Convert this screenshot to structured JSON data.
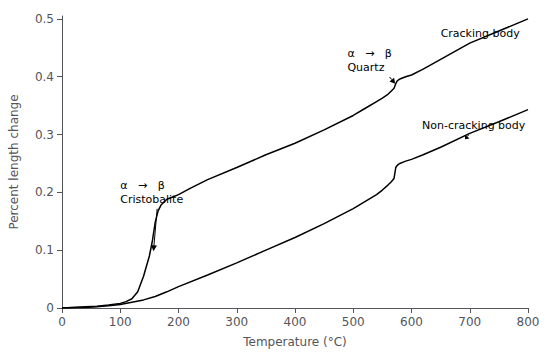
{
  "chart_data": {
    "type": "line",
    "title": "",
    "xlabel": "Temperature (°C)",
    "ylabel": "Percent length change",
    "xlim": [
      0,
      800
    ],
    "ylim": [
      0,
      0.505
    ],
    "xticks": [
      0,
      100,
      200,
      300,
      400,
      500,
      600,
      700,
      800
    ],
    "yticks": [
      0,
      0.1,
      0.2,
      0.3,
      0.4,
      0.5
    ],
    "grid": false,
    "background_color": "#ffffff",
    "series": [
      {
        "color": "#000000",
        "x": [
          0,
          20,
          40,
          60,
          80,
          100,
          110,
          120,
          130,
          140,
          150,
          155,
          160,
          165,
          170,
          180,
          190,
          200,
          220,
          250,
          300,
          350,
          400,
          450,
          500,
          520,
          540,
          550,
          560,
          565,
          570,
          573,
          575,
          577,
          580,
          590,
          600,
          620,
          650,
          700,
          750,
          800
        ],
        "values": [
          0,
          0.001,
          0.002,
          0.003,
          0.005,
          0.008,
          0.011,
          0.016,
          0.028,
          0.055,
          0.09,
          0.115,
          0.148,
          0.168,
          0.178,
          0.188,
          0.192,
          0.196,
          0.207,
          0.222,
          0.243,
          0.265,
          0.285,
          0.308,
          0.333,
          0.345,
          0.357,
          0.363,
          0.37,
          0.375,
          0.38,
          0.388,
          0.392,
          0.394,
          0.396,
          0.4,
          0.403,
          0.413,
          0.43,
          0.458,
          0.479,
          0.5
        ]
      },
      {
        "color": "#000000",
        "x": [
          0,
          20,
          40,
          60,
          80,
          100,
          120,
          140,
          160,
          180,
          200,
          250,
          300,
          350,
          400,
          450,
          500,
          520,
          540,
          550,
          560,
          565,
          570,
          573,
          575,
          577,
          580,
          590,
          600,
          620,
          650,
          700,
          750,
          800
        ],
        "values": [
          0,
          0.001,
          0.001,
          0.002,
          0.004,
          0.006,
          0.01,
          0.014,
          0.02,
          0.028,
          0.037,
          0.057,
          0.078,
          0.1,
          0.122,
          0.146,
          0.172,
          0.184,
          0.196,
          0.204,
          0.213,
          0.218,
          0.224,
          0.243,
          0.246,
          0.248,
          0.25,
          0.254,
          0.257,
          0.265,
          0.278,
          0.302,
          0.322,
          0.343
        ]
      }
    ],
    "annotations": [
      {
        "text": "Cracking body",
        "x": 735,
        "y": 0.474,
        "text_x": 650,
        "text_y": 0.475
      },
      {
        "text": "α   →   β\nQuartz",
        "x": 572,
        "y": 0.388,
        "text_x": 490,
        "text_y": 0.403
      },
      {
        "text": "Non-cracking body",
        "x": 692,
        "y": 0.292,
        "text_x": 618,
        "text_y": 0.315
      },
      {
        "text": "α   →   β\nCristobalite",
        "x": 157,
        "y": 0.098,
        "text_x": 100,
        "text_y": 0.175
      }
    ]
  }
}
